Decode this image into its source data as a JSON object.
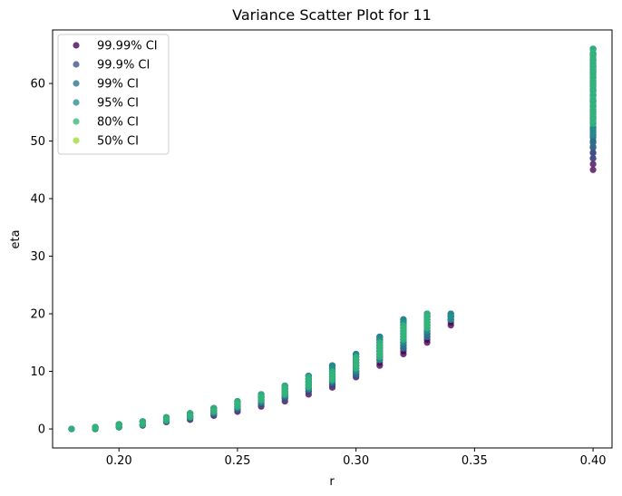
{
  "chart_data": {
    "type": "scatter",
    "title": "Variance Scatter Plot for 11",
    "xlabel": "r",
    "ylabel": "eta",
    "xlim": [
      0.172,
      0.408
    ],
    "ylim": [
      -3.3,
      69.3
    ],
    "xticks": [
      0.2,
      0.25,
      0.3,
      0.35,
      0.4
    ],
    "xtick_labels": [
      "0.20",
      "0.25",
      "0.30",
      "0.35",
      "0.40"
    ],
    "yticks": [
      0,
      10,
      20,
      30,
      40,
      50,
      60
    ],
    "ytick_labels": [
      "0",
      "10",
      "20",
      "30",
      "40",
      "50",
      "60"
    ],
    "grid": false,
    "legend_position": "top-left",
    "series": [
      {
        "name": "99.99% CI",
        "color": "#440154",
        "points": [
          {
            "x": 0.18,
            "y_min": 0,
            "y_max": 0
          },
          {
            "x": 0.19,
            "y_min": 0,
            "y_max": 0.3
          },
          {
            "x": 0.2,
            "y_min": 0.3,
            "y_max": 0.8
          },
          {
            "x": 0.21,
            "y_min": 0.6,
            "y_max": 1.3
          },
          {
            "x": 0.22,
            "y_min": 1.2,
            "y_max": 2.0
          },
          {
            "x": 0.23,
            "y_min": 1.6,
            "y_max": 2.7
          },
          {
            "x": 0.24,
            "y_min": 2.3,
            "y_max": 3.6
          },
          {
            "x": 0.25,
            "y_min": 3.0,
            "y_max": 4.8
          },
          {
            "x": 0.26,
            "y_min": 3.9,
            "y_max": 6.0
          },
          {
            "x": 0.27,
            "y_min": 4.8,
            "y_max": 7.5
          },
          {
            "x": 0.28,
            "y_min": 6.0,
            "y_max": 9.2
          },
          {
            "x": 0.29,
            "y_min": 7.2,
            "y_max": 11.0
          },
          {
            "x": 0.3,
            "y_min": 9.0,
            "y_max": 13.0
          },
          {
            "x": 0.31,
            "y_min": 11.0,
            "y_max": 16.0
          },
          {
            "x": 0.32,
            "y_min": 13.0,
            "y_max": 19.0
          },
          {
            "x": 0.33,
            "y_min": 15.0,
            "y_max": 20.0
          },
          {
            "x": 0.34,
            "y_min": 18.0,
            "y_max": 20.0
          },
          {
            "x": 0.4,
            "y_min": 45.0,
            "y_max": 66.0
          }
        ]
      },
      {
        "name": "99.9% CI",
        "color": "#3b528b",
        "points": [
          {
            "x": 0.18,
            "y_min": 0,
            "y_max": 0
          },
          {
            "x": 0.19,
            "y_min": 0,
            "y_max": 0.3
          },
          {
            "x": 0.2,
            "y_min": 0.3,
            "y_max": 0.8
          },
          {
            "x": 0.21,
            "y_min": 0.7,
            "y_max": 1.3
          },
          {
            "x": 0.22,
            "y_min": 1.3,
            "y_max": 2.0
          },
          {
            "x": 0.23,
            "y_min": 1.8,
            "y_max": 2.7
          },
          {
            "x": 0.24,
            "y_min": 2.5,
            "y_max": 3.6
          },
          {
            "x": 0.25,
            "y_min": 3.3,
            "y_max": 4.8
          },
          {
            "x": 0.26,
            "y_min": 4.2,
            "y_max": 6.0
          },
          {
            "x": 0.27,
            "y_min": 5.2,
            "y_max": 7.5
          },
          {
            "x": 0.28,
            "y_min": 6.5,
            "y_max": 9.2
          },
          {
            "x": 0.29,
            "y_min": 7.6,
            "y_max": 11.0
          },
          {
            "x": 0.3,
            "y_min": 9.2,
            "y_max": 13.0
          },
          {
            "x": 0.31,
            "y_min": 12.0,
            "y_max": 16.0
          },
          {
            "x": 0.32,
            "y_min": 14.0,
            "y_max": 19.0
          },
          {
            "x": 0.33,
            "y_min": 16.0,
            "y_max": 20.0
          },
          {
            "x": 0.34,
            "y_min": 19.0,
            "y_max": 20.0
          },
          {
            "x": 0.4,
            "y_min": 47.0,
            "y_max": 66.0
          }
        ]
      },
      {
        "name": "99% CI",
        "color": "#2c728e",
        "points": [
          {
            "x": 0.18,
            "y_min": 0,
            "y_max": 0
          },
          {
            "x": 0.19,
            "y_min": 0,
            "y_max": 0.3
          },
          {
            "x": 0.2,
            "y_min": 0.3,
            "y_max": 0.8
          },
          {
            "x": 0.21,
            "y_min": 0.7,
            "y_max": 1.3
          },
          {
            "x": 0.22,
            "y_min": 1.3,
            "y_max": 2.0
          },
          {
            "x": 0.23,
            "y_min": 1.9,
            "y_max": 2.7
          },
          {
            "x": 0.24,
            "y_min": 2.7,
            "y_max": 3.6
          },
          {
            "x": 0.25,
            "y_min": 3.5,
            "y_max": 4.8
          },
          {
            "x": 0.26,
            "y_min": 4.5,
            "y_max": 6.0
          },
          {
            "x": 0.27,
            "y_min": 5.5,
            "y_max": 7.5
          },
          {
            "x": 0.28,
            "y_min": 6.8,
            "y_max": 9.2
          },
          {
            "x": 0.29,
            "y_min": 8.0,
            "y_max": 11.0
          },
          {
            "x": 0.3,
            "y_min": 9.5,
            "y_max": 13.0
          },
          {
            "x": 0.31,
            "y_min": 12.0,
            "y_max": 16.0
          },
          {
            "x": 0.32,
            "y_min": 14.0,
            "y_max": 19.0
          },
          {
            "x": 0.33,
            "y_min": 16.0,
            "y_max": 20.0
          },
          {
            "x": 0.34,
            "y_min": 19.0,
            "y_max": 20.0
          },
          {
            "x": 0.4,
            "y_min": 49.0,
            "y_max": 66.0
          }
        ]
      },
      {
        "name": "95% CI",
        "color": "#21918c",
        "points": [
          {
            "x": 0.18,
            "y_min": 0,
            "y_max": 0
          },
          {
            "x": 0.19,
            "y_min": 0,
            "y_max": 0.3
          },
          {
            "x": 0.2,
            "y_min": 0.3,
            "y_max": 0.8
          },
          {
            "x": 0.21,
            "y_min": 0.8,
            "y_max": 1.3
          },
          {
            "x": 0.22,
            "y_min": 1.4,
            "y_max": 2.0
          },
          {
            "x": 0.23,
            "y_min": 2.0,
            "y_max": 2.7
          },
          {
            "x": 0.24,
            "y_min": 2.8,
            "y_max": 3.6
          },
          {
            "x": 0.25,
            "y_min": 3.7,
            "y_max": 4.8
          },
          {
            "x": 0.26,
            "y_min": 4.7,
            "y_max": 6.0
          },
          {
            "x": 0.27,
            "y_min": 5.8,
            "y_max": 7.5
          },
          {
            "x": 0.28,
            "y_min": 7.0,
            "y_max": 9.2
          },
          {
            "x": 0.29,
            "y_min": 8.3,
            "y_max": 11.0
          },
          {
            "x": 0.3,
            "y_min": 10.0,
            "y_max": 13.0
          },
          {
            "x": 0.31,
            "y_min": 12.0,
            "y_max": 16.0
          },
          {
            "x": 0.32,
            "y_min": 15.0,
            "y_max": 19.0
          },
          {
            "x": 0.33,
            "y_min": 17.0,
            "y_max": 20.0
          },
          {
            "x": 0.34,
            "y_min": 19.0,
            "y_max": 20.0
          },
          {
            "x": 0.4,
            "y_min": 51.0,
            "y_max": 66.0
          }
        ]
      },
      {
        "name": "80% CI",
        "color": "#35b779",
        "points": [
          {
            "x": 0.18,
            "y_min": 0,
            "y_max": 0
          },
          {
            "x": 0.19,
            "y_min": 0.1,
            "y_max": 0.3
          },
          {
            "x": 0.2,
            "y_min": 0.4,
            "y_max": 0.8
          },
          {
            "x": 0.21,
            "y_min": 0.8,
            "y_max": 1.3
          },
          {
            "x": 0.22,
            "y_min": 1.5,
            "y_max": 2.0
          },
          {
            "x": 0.23,
            "y_min": 2.1,
            "y_max": 2.7
          },
          {
            "x": 0.24,
            "y_min": 3.0,
            "y_max": 3.6
          },
          {
            "x": 0.25,
            "y_min": 3.9,
            "y_max": 4.8
          },
          {
            "x": 0.26,
            "y_min": 5.0,
            "y_max": 6.0
          },
          {
            "x": 0.27,
            "y_min": 6.0,
            "y_max": 7.5
          },
          {
            "x": 0.28,
            "y_min": 7.3,
            "y_max": 9.0
          },
          {
            "x": 0.29,
            "y_min": 8.5,
            "y_max": 10.0
          },
          {
            "x": 0.3,
            "y_min": 10.5,
            "y_max": 12.5
          },
          {
            "x": 0.31,
            "y_min": 12.5,
            "y_max": 15.0
          },
          {
            "x": 0.32,
            "y_min": 15.5,
            "y_max": 18.0
          },
          {
            "x": 0.33,
            "y_min": 17.5,
            "y_max": 20.0
          },
          {
            "x": 0.4,
            "y_min": 53.0,
            "y_max": 66.0
          }
        ]
      },
      {
        "name": "50% CI",
        "color": "#a0da39",
        "points": []
      }
    ]
  }
}
